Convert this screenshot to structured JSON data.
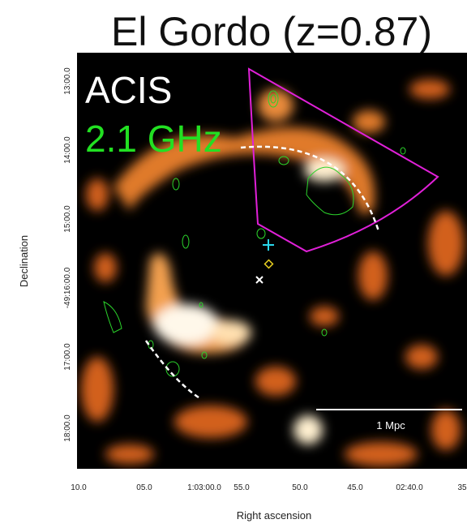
{
  "title": "El Gordo (z=0.87)",
  "panel": {
    "instrument": "ACIS",
    "radio": "2.1 GHz",
    "scale_bar": "1 Mpc"
  },
  "y_axis": {
    "label": "Declination",
    "ticks": [
      "13:00.0",
      "14:00.0",
      "15:00.0",
      "-49:16:00.0",
      "17:00.0",
      "18:00.0"
    ]
  },
  "x_axis": {
    "label": "Right ascension",
    "ticks": [
      "10.0",
      "05.0",
      "1:03:00.0",
      "55.0",
      "50.0",
      "45.0",
      "02:40.0",
      "35"
    ]
  }
}
